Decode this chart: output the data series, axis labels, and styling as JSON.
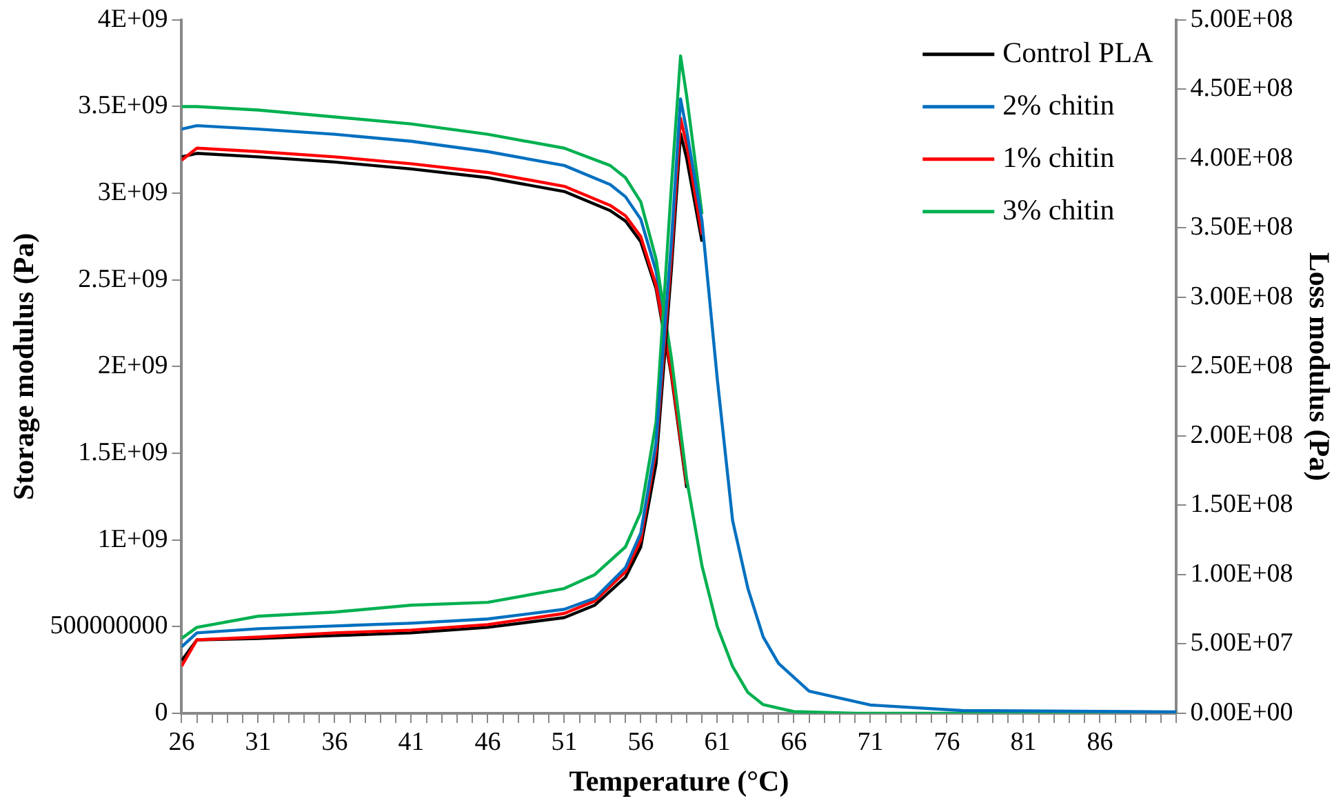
{
  "chart_data": {
    "type": "line",
    "xlabel": "Temperature (°C)",
    "ylabel": "Storage modulus (Pa)",
    "y2label": "Loss modulus (Pa)",
    "xlim": [
      26,
      91
    ],
    "xticks": [
      26,
      {
        "value": 27,
        "label": null
      },
      {
        "value": 28,
        "label": null
      },
      {
        "value": 29,
        "label": null
      },
      {
        "value": 30,
        "label": null
      },
      31,
      {
        "value": 32,
        "label": null
      },
      {
        "value": 33,
        "label": null
      },
      {
        "value": 34,
        "label": null
      },
      {
        "value": 35,
        "label": null
      },
      36,
      {
        "value": 37,
        "label": null
      },
      {
        "value": 38,
        "label": null
      },
      {
        "value": 39,
        "label": null
      },
      {
        "value": 40,
        "label": null
      },
      41,
      {
        "value": 42,
        "label": null
      },
      {
        "value": 43,
        "label": null
      },
      {
        "value": 44,
        "label": null
      },
      {
        "value": 45,
        "label": null
      },
      46,
      {
        "value": 47,
        "label": null
      },
      {
        "value": 48,
        "label": null
      },
      {
        "value": 49,
        "label": null
      },
      {
        "value": 50,
        "label": null
      },
      51,
      {
        "value": 52,
        "label": null
      },
      {
        "value": 53,
        "label": null
      },
      {
        "value": 54,
        "label": null
      },
      {
        "value": 55,
        "label": null
      },
      56,
      {
        "value": 57,
        "label": null
      },
      {
        "value": 58,
        "label": null
      },
      {
        "value": 59,
        "label": null
      },
      {
        "value": 60,
        "label": null
      },
      61,
      {
        "value": 62,
        "label": null
      },
      {
        "value": 63,
        "label": null
      },
      {
        "value": 64,
        "label": null
      },
      {
        "value": 65,
        "label": null
      },
      66,
      {
        "value": 67,
        "label": null
      },
      {
        "value": 68,
        "label": null
      },
      {
        "value": 69,
        "label": null
      },
      {
        "value": 70,
        "label": null
      },
      71,
      {
        "value": 72,
        "label": null
      },
      {
        "value": 73,
        "label": null
      },
      {
        "value": 74,
        "label": null
      },
      {
        "value": 75,
        "label": null
      },
      76,
      {
        "value": 77,
        "label": null
      },
      {
        "value": 78,
        "label": null
      },
      {
        "value": 79,
        "label": null
      },
      {
        "value": 80,
        "label": null
      },
      81,
      {
        "value": 82,
        "label": null
      },
      {
        "value": 83,
        "label": null
      },
      {
        "value": 84,
        "label": null
      },
      {
        "value": 85,
        "label": null
      },
      86,
      {
        "value": 87,
        "label": null
      },
      {
        "value": 88,
        "label": null
      },
      {
        "value": 89,
        "label": null
      },
      {
        "value": 90,
        "label": null
      },
      {
        "value": 91,
        "label": null
      }
    ],
    "ylim": [
      0,
      4000000000
    ],
    "yticks": [
      0,
      500000000,
      {
        "value": 1000000000,
        "label": "1E+09"
      },
      {
        "value": 1500000000,
        "label": "1.5E+09"
      },
      {
        "value": 2000000000,
        "label": "2E+09"
      },
      {
        "value": 2500000000,
        "label": "2.5E+09"
      },
      {
        "value": 3000000000,
        "label": "3E+09"
      },
      {
        "value": 3500000000,
        "label": "3.5E+09"
      },
      {
        "value": 4000000000,
        "label": "4E+09"
      }
    ],
    "y2lim": [
      0,
      500000000
    ],
    "y2ticks": [
      {
        "value": 0,
        "label": "0.00E+00"
      },
      {
        "value": 50000000,
        "label": "5.00E+07"
      },
      {
        "value": 100000000,
        "label": "1.00E+08"
      },
      {
        "value": 150000000,
        "label": "1.50E+08"
      },
      {
        "value": 200000000,
        "label": "2.00E+08"
      },
      {
        "value": 250000000,
        "label": "2.50E+08"
      },
      {
        "value": 300000000,
        "label": "3.00E+08"
      },
      {
        "value": 350000000,
        "label": "3.50E+08"
      },
      {
        "value": 400000000,
        "label": "4.00E+08"
      },
      {
        "value": 450000000,
        "label": "4.50E+08"
      },
      {
        "value": 500000000,
        "label": "5.00E+08"
      }
    ],
    "grid": false,
    "legend": "top right",
    "marker": "none",
    "line_style": "solid",
    "series": [
      {
        "name": "Control PLA",
        "color": "#000000",
        "x": [
          26,
          27,
          31,
          36,
          41,
          46,
          51,
          54,
          55,
          56,
          57,
          58,
          59
        ],
        "values": [
          3210000000,
          3230000000,
          3210000000,
          3180000000,
          3140000000,
          3090000000,
          3010000000,
          2900000000,
          2840000000,
          2720000000,
          2450000000,
          1950000000,
          1300000000
        ]
      },
      {
        "name": "2% chitin",
        "color": "#0070c0",
        "x": [
          26,
          27,
          31,
          36,
          41,
          46,
          51,
          54,
          55,
          56,
          57,
          58,
          59
        ],
        "values": [
          3370000000,
          3390000000,
          3370000000,
          3340000000,
          3300000000,
          3240000000,
          3160000000,
          3050000000,
          2980000000,
          2850000000,
          2550000000,
          2000000000,
          1330000000
        ]
      },
      {
        "name": "1% chitin",
        "color": "#ff0000",
        "x": [
          26,
          27,
          31,
          36,
          41,
          46,
          51,
          54,
          55,
          56,
          57,
          58,
          59
        ],
        "values": [
          3190000000,
          3260000000,
          3240000000,
          3210000000,
          3170000000,
          3120000000,
          3040000000,
          2930000000,
          2870000000,
          2750000000,
          2470000000,
          1970000000,
          1320000000
        ]
      },
      {
        "name": "3% chitin",
        "color": "#00b050",
        "x": [
          26,
          27,
          31,
          36,
          41,
          46,
          51,
          54,
          55,
          56,
          57,
          58,
          59,
          60,
          61,
          62,
          63,
          64,
          66,
          70,
          91
        ],
        "values": [
          3500000000,
          3500000000,
          3480000000,
          3440000000,
          3400000000,
          3340000000,
          3260000000,
          3160000000,
          3090000000,
          2950000000,
          2620000000,
          2050000000,
          1350000000,
          850000000,
          500000000,
          270000000,
          120000000,
          50000000,
          10000000,
          0,
          0
        ]
      },
      {
        "color": "#000000",
        "axis": "y2",
        "x": [
          26,
          27,
          31,
          36,
          41,
          46,
          51,
          53,
          55,
          56,
          57,
          58,
          58.6,
          59,
          60
        ],
        "values": [
          38000000,
          53000000,
          54000000,
          56000000,
          58000000,
          62000000,
          69000000,
          78000000,
          98000000,
          120000000,
          180000000,
          320000000,
          418000000,
          400000000,
          340000000
        ]
      },
      {
        "color": "#ff0000",
        "axis": "y2",
        "x": [
          26,
          27,
          31,
          36,
          41,
          46,
          51,
          53,
          55,
          56,
          57,
          58,
          58.6,
          59,
          60
        ],
        "values": [
          34000000,
          53000000,
          55000000,
          58000000,
          60000000,
          64000000,
          72000000,
          81000000,
          102000000,
          125000000,
          190000000,
          330000000,
          429000000,
          410000000,
          345000000
        ]
      },
      {
        "color": "#00b050",
        "axis": "y2",
        "x": [
          26,
          27,
          31,
          36,
          41,
          46,
          51,
          53,
          55,
          56,
          57,
          58,
          58.6,
          59,
          60
        ],
        "values": [
          54000000,
          62000000,
          70000000,
          73000000,
          78000000,
          80000000,
          90000000,
          100000000,
          120000000,
          145000000,
          210000000,
          380000000,
          474000000,
          445000000,
          360000000
        ]
      },
      {
        "color": "#0070c0",
        "axis": "y2",
        "x": [
          26,
          27,
          31,
          36,
          41,
          46,
          51,
          53,
          55,
          56,
          57,
          58,
          58.6,
          59,
          60,
          61,
          62,
          63,
          64,
          65,
          67,
          71,
          77,
          91
        ],
        "values": [
          48000000,
          58000000,
          61000000,
          63000000,
          65000000,
          68000000,
          75000000,
          83000000,
          105000000,
          130000000,
          195000000,
          340000000,
          443000000,
          420000000,
          355000000,
          241000000,
          139000000,
          90000000,
          55000000,
          36000000,
          16000000,
          6000000,
          2000000,
          1000000
        ]
      }
    ]
  }
}
